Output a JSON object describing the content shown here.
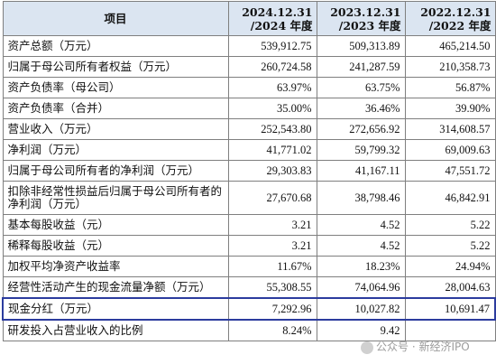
{
  "header": {
    "item": "项目",
    "years": [
      {
        "line1": "2024.12.31",
        "line2": "/2024 年度"
      },
      {
        "line1": "2023.12.31",
        "line2": "/2023 年度"
      },
      {
        "line1": "2022.12.31",
        "line2": "/2022 年度"
      }
    ]
  },
  "rows": [
    {
      "label": "资产总额（万元）",
      "values": [
        "539,912.75",
        "509,313.89",
        "465,214.50"
      ]
    },
    {
      "label": "归属于母公司所有者权益（万元）",
      "values": [
        "260,724.58",
        "241,287.59",
        "210,358.73"
      ]
    },
    {
      "label": "资产负债率（母公司）",
      "values": [
        "63.97%",
        "63.75%",
        "56.87%"
      ]
    },
    {
      "label": "资产负债率（合并）",
      "values": [
        "35.00%",
        "36.46%",
        "39.90%"
      ]
    },
    {
      "label": "营业收入（万元）",
      "values": [
        "252,543.80",
        "272,656.92",
        "314,608.57"
      ]
    },
    {
      "label": "净利润（万元）",
      "values": [
        "41,771.02",
        "59,799.32",
        "69,009.63"
      ]
    },
    {
      "label": "归属于母公司所有者的净利润（万元）",
      "values": [
        "29,303.83",
        "41,167.11",
        "47,551.72"
      ]
    },
    {
      "label": "扣除非经常性损益后归属于母公司所有者的净利润（万元）",
      "values": [
        "27,670.68",
        "38,798.46",
        "46,842.91"
      ]
    },
    {
      "label": "基本每股收益（元）",
      "values": [
        "3.21",
        "4.52",
        "5.22"
      ]
    },
    {
      "label": "稀释每股收益（元）",
      "values": [
        "3.21",
        "4.52",
        "5.22"
      ]
    },
    {
      "label": "加权平均净资产收益率",
      "values": [
        "11.67%",
        "18.23%",
        "24.94%"
      ]
    },
    {
      "label": "经营性活动产生的现金流量净额（万元）",
      "values": [
        "55,308.55",
        "74,064.96",
        "28,004.63"
      ]
    },
    {
      "label": "现金分红（万元）",
      "values": [
        "7,292.96",
        "10,027.82",
        "10,691.47"
      ]
    },
    {
      "label": "研发投入占营业收入的比例",
      "values": [
        "8.24%",
        "9.42",
        ""
      ]
    }
  ],
  "highlight_color": "#2c3c9e",
  "header_bg": "#dbe5f1",
  "watermark": {
    "text": "公众号 · 新经济IPO",
    "icon": "wechat-icon"
  }
}
